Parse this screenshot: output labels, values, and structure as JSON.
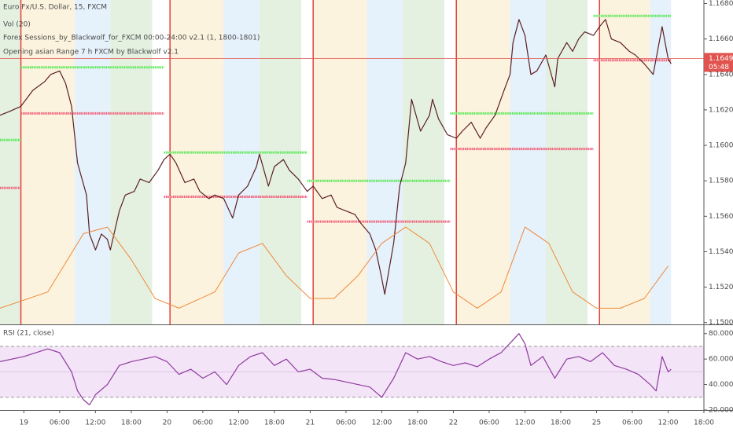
{
  "chart_data": [
    {
      "type": "line",
      "title": "Euro Fx/U.S. Dollar, 15, FXCM",
      "indicators": [
        "Vol (20)",
        "Forex Sessions_by_Blackwolf_for_FXCM 00:00-24:00 v2.1 (1, 1800-1801)",
        "Opening asian Range 7 h FXCM by Blackwolf v2.1"
      ],
      "xlim": [
        -4,
        114
      ],
      "ylim": [
        1.1499,
        1.1682
      ],
      "y2lim": [
        0,
        100
      ],
      "yticks": [
        {
          "value": 1.15,
          "label": "1.15000"
        },
        {
          "value": 1.152,
          "label": "1.15200"
        },
        {
          "value": 1.154,
          "label": "1.15400"
        },
        {
          "value": 1.156,
          "label": "1.15600"
        },
        {
          "value": 1.158,
          "label": "1.15800"
        },
        {
          "value": 1.16,
          "label": "1.16000"
        },
        {
          "value": 1.162,
          "label": "1.16200"
        },
        {
          "value": 1.164,
          "label": "1.16400"
        },
        {
          "value": 1.166,
          "label": "1.16600"
        },
        {
          "value": 1.168,
          "label": "1.16800"
        }
      ],
      "current_price": {
        "value": 1.1649,
        "label": "1.16490",
        "color": "#e0534f"
      },
      "countdown": "05:48",
      "day_lines": [
        -0.5,
        24.5,
        48.5,
        72.5,
        96.5
      ],
      "day_line_color": "#e0403c",
      "session_bands": [
        {
          "start": -4,
          "end": -0.5,
          "color": "#e4f1e1"
        },
        {
          "start": -0.5,
          "end": 8.5,
          "color": "#fcf3de"
        },
        {
          "start": 8.5,
          "end": 14.5,
          "color": "#e5f1fb"
        },
        {
          "start": 14.5,
          "end": 21.5,
          "color": "#e4f1e1"
        },
        {
          "start": 24.5,
          "end": 33.5,
          "color": "#fcf3de"
        },
        {
          "start": 33.5,
          "end": 39.5,
          "color": "#e5f1fb"
        },
        {
          "start": 39.5,
          "end": 46.5,
          "color": "#e4f1e1"
        },
        {
          "start": 48.5,
          "end": 57.5,
          "color": "#fcf3de"
        },
        {
          "start": 57.5,
          "end": 63.5,
          "color": "#e5f1fb"
        },
        {
          "start": 63.5,
          "end": 70.5,
          "color": "#e4f1e1"
        },
        {
          "start": 72.5,
          "end": 81.5,
          "color": "#fcf3de"
        },
        {
          "start": 81.5,
          "end": 87.5,
          "color": "#e5f1fb"
        },
        {
          "start": 87.5,
          "end": 94.5,
          "color": "#e4f1e1"
        },
        {
          "start": 96.5,
          "end": 105,
          "color": "#fcf3de"
        },
        {
          "start": 105,
          "end": 108.5,
          "color": "#e5f1fb"
        }
      ],
      "range_lines": [
        {
          "start": -4,
          "end": -0.5,
          "value": 1.1603,
          "color": "#5ee85a"
        },
        {
          "start": -4,
          "end": -0.5,
          "value": 1.1576,
          "color": "#f0607a"
        },
        {
          "start": -0.5,
          "end": 23.5,
          "value": 1.1644,
          "color": "#5ee85a"
        },
        {
          "start": -0.5,
          "end": 23.5,
          "value": 1.1618,
          "color": "#f0607a"
        },
        {
          "start": 23.5,
          "end": 47.5,
          "value": 1.1596,
          "color": "#5ee85a"
        },
        {
          "start": 23.5,
          "end": 47.5,
          "value": 1.1571,
          "color": "#f0607a"
        },
        {
          "start": 47.5,
          "end": 71.5,
          "value": 1.158,
          "color": "#5ee85a"
        },
        {
          "start": 47.5,
          "end": 71.5,
          "value": 1.1557,
          "color": "#f0607a"
        },
        {
          "start": 71.5,
          "end": 95.5,
          "value": 1.1618,
          "color": "#5ee85a"
        },
        {
          "start": 71.5,
          "end": 95.5,
          "value": 1.1598,
          "color": "#f0607a"
        },
        {
          "start": 95.5,
          "end": 108.5,
          "value": 1.1673,
          "color": "#5ee85a"
        },
        {
          "start": 95.5,
          "end": 108.5,
          "value": 1.1648,
          "color": "#f0607a"
        }
      ],
      "series": [
        {
          "name": "Euro Fx/U.S. Dollar",
          "color": "#5b1f22",
          "x": [
            -4,
            -2.5,
            -0.5,
            1.5,
            3.5,
            4.5,
            6,
            7,
            8,
            9,
            10.5,
            11,
            12,
            13,
            14,
            14.5,
            16,
            17,
            18.5,
            19.5,
            21,
            22.5,
            23.5,
            24.5,
            25.5,
            27,
            28.5,
            29.5,
            31,
            32,
            33.5,
            35,
            36,
            37.5,
            39,
            39.5,
            41,
            42,
            43.5,
            44.5,
            46,
            47.5,
            48.5,
            50,
            51.5,
            52.5,
            54,
            55.5,
            56.5,
            58,
            59,
            60,
            60.5,
            62,
            63,
            64,
            65,
            66.5,
            68,
            68.5,
            69.5,
            71,
            72.5,
            73.5,
            75,
            76.5,
            77.5,
            79,
            80.5,
            81.5,
            82,
            83,
            84,
            85,
            86,
            87.5,
            89,
            89.5,
            91,
            92,
            93,
            94,
            95.5,
            96.5,
            97.5,
            98.5,
            100,
            101.5,
            102.5,
            104,
            105.5,
            106.5,
            107,
            108,
            108.5
          ],
          "values": [
            1.1617,
            1.1619,
            1.1622,
            1.1631,
            1.1636,
            1.164,
            1.1642,
            1.1635,
            1.1622,
            1.159,
            1.1572,
            1.155,
            1.1541,
            1.155,
            1.1547,
            1.1541,
            1.1563,
            1.1572,
            1.1574,
            1.1581,
            1.1579,
            1.1586,
            1.1592,
            1.1595,
            1.159,
            1.1579,
            1.1581,
            1.1574,
            1.157,
            1.1572,
            1.157,
            1.1559,
            1.1572,
            1.1577,
            1.1588,
            1.1595,
            1.1577,
            1.1588,
            1.1592,
            1.1586,
            1.1581,
            1.1574,
            1.1577,
            1.157,
            1.1572,
            1.1565,
            1.1563,
            1.1561,
            1.1556,
            1.155,
            1.1541,
            1.1525,
            1.1516,
            1.1545,
            1.1577,
            1.159,
            1.1626,
            1.1608,
            1.1617,
            1.1626,
            1.1615,
            1.1606,
            1.1604,
            1.1608,
            1.1613,
            1.1604,
            1.161,
            1.1617,
            1.1631,
            1.164,
            1.1658,
            1.1671,
            1.1662,
            1.164,
            1.1642,
            1.1651,
            1.1633,
            1.1649,
            1.1658,
            1.1653,
            1.166,
            1.1664,
            1.1662,
            1.1667,
            1.1671,
            1.166,
            1.1658,
            1.1653,
            1.1651,
            1.1646,
            1.164,
            1.1658,
            1.1667,
            1.1649,
            1.1646
          ]
        },
        {
          "name": "Vol (20)",
          "color": "#f0883a",
          "axis": "y2",
          "x": [
            -4,
            4,
            10,
            14,
            18,
            22,
            26,
            32,
            36,
            40,
            44,
            48,
            52,
            56,
            60,
            64,
            68,
            72,
            76,
            80,
            84,
            88,
            92,
            96,
            100,
            104,
            108
          ],
          "values": [
            5,
            10,
            28,
            30,
            20,
            8,
            5,
            10,
            22,
            25,
            15,
            8,
            8,
            15,
            25,
            30,
            25,
            10,
            5,
            10,
            30,
            25,
            10,
            5,
            5,
            8,
            18
          ]
        }
      ]
    },
    {
      "type": "line",
      "title": "RSI (21, close)",
      "xlim": [
        -4,
        114
      ],
      "ylim": [
        20,
        86
      ],
      "yticks": [
        {
          "value": 20,
          "label": "20.0000"
        },
        {
          "value": 40,
          "label": "40.0000"
        },
        {
          "value": 60,
          "label": "60.0000"
        },
        {
          "value": 80,
          "label": "80.0000"
        }
      ],
      "band_levels": [
        30,
        70
      ],
      "band_color": "#f4e4f8",
      "xticks": [
        {
          "value": 0,
          "label": "19"
        },
        {
          "value": 6,
          "label": "06:00"
        },
        {
          "value": 12,
          "label": "12:00"
        },
        {
          "value": 18,
          "label": "18:00"
        },
        {
          "value": 24,
          "label": "20"
        },
        {
          "value": 30,
          "label": "06:00"
        },
        {
          "value": 36,
          "label": "12:00"
        },
        {
          "value": 42,
          "label": "18:00"
        },
        {
          "value": 48,
          "label": "21"
        },
        {
          "value": 54,
          "label": "06:00"
        },
        {
          "value": 60,
          "label": "12:00"
        },
        {
          "value": 66,
          "label": "18:00"
        },
        {
          "value": 72,
          "label": "22"
        },
        {
          "value": 78,
          "label": "06:00"
        },
        {
          "value": 84,
          "label": "12:00"
        },
        {
          "value": 90,
          "label": "18:00"
        },
        {
          "value": 96,
          "label": "25"
        },
        {
          "value": 102,
          "label": "06:00"
        },
        {
          "value": 108,
          "label": "12:00"
        },
        {
          "value": 114,
          "label": "18:00"
        }
      ],
      "series": [
        {
          "name": "RSI (21, close)",
          "color": "#8e3a9e",
          "x": [
            -4,
            0,
            4,
            6,
            8,
            9,
            10,
            11,
            12,
            14,
            16,
            18,
            20,
            22,
            24,
            26,
            28,
            30,
            32,
            34,
            36,
            38,
            40,
            42,
            44,
            46,
            48,
            50,
            52,
            54,
            56,
            58,
            60,
            62,
            64,
            66,
            68,
            70,
            72,
            74,
            76,
            78,
            80,
            82,
            83,
            84,
            85,
            87,
            89,
            91,
            93,
            95,
            97,
            99,
            101,
            103,
            105,
            106,
            107,
            108,
            108.5
          ],
          "values": [
            58,
            62,
            68,
            65,
            50,
            35,
            28,
            24,
            32,
            40,
            55,
            58,
            60,
            62,
            58,
            48,
            52,
            45,
            50,
            40,
            55,
            62,
            65,
            55,
            60,
            50,
            52,
            45,
            44,
            42,
            40,
            38,
            30,
            45,
            65,
            60,
            62,
            58,
            55,
            57,
            54,
            60,
            65,
            75,
            80,
            72,
            55,
            62,
            45,
            60,
            62,
            58,
            65,
            55,
            52,
            48,
            40,
            35,
            62,
            50,
            52
          ]
        }
      ]
    }
  ]
}
